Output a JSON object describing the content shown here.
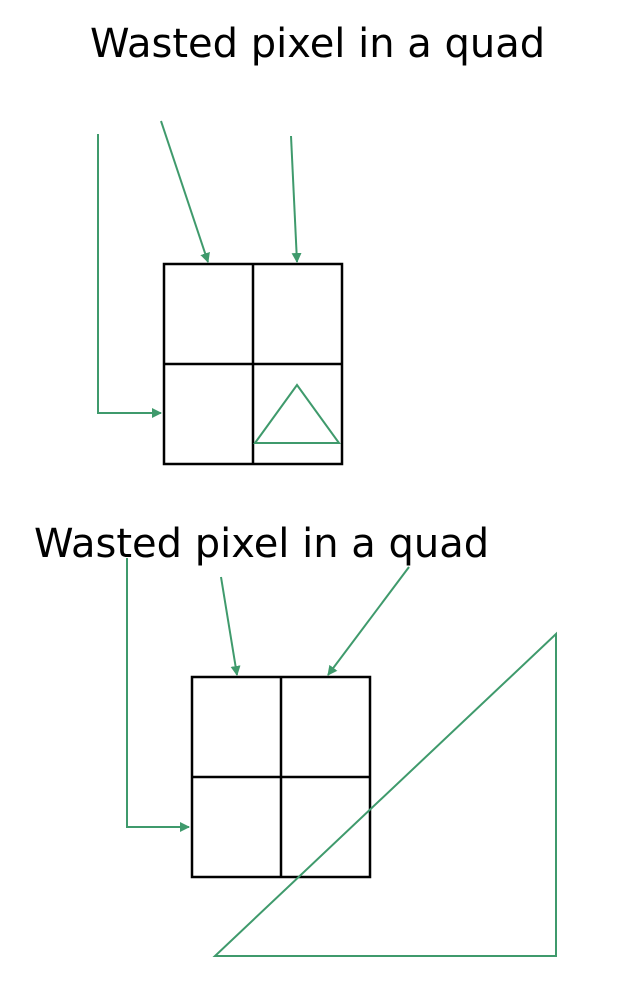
{
  "figures": [
    {
      "caption": "Wasted pixel in a quad",
      "quad": "2x2 pixel quad",
      "arrows": 3,
      "primitive": "small triangle covering one pixel"
    },
    {
      "caption": "Wasted pixel in a quad",
      "quad": "2x2 pixel quad",
      "arrows": 3,
      "primitive": "large triangle overlapping the quad"
    }
  ],
  "colors": {
    "grid": "#000000",
    "arrow": "#3f9a6c",
    "text": "#000000"
  }
}
